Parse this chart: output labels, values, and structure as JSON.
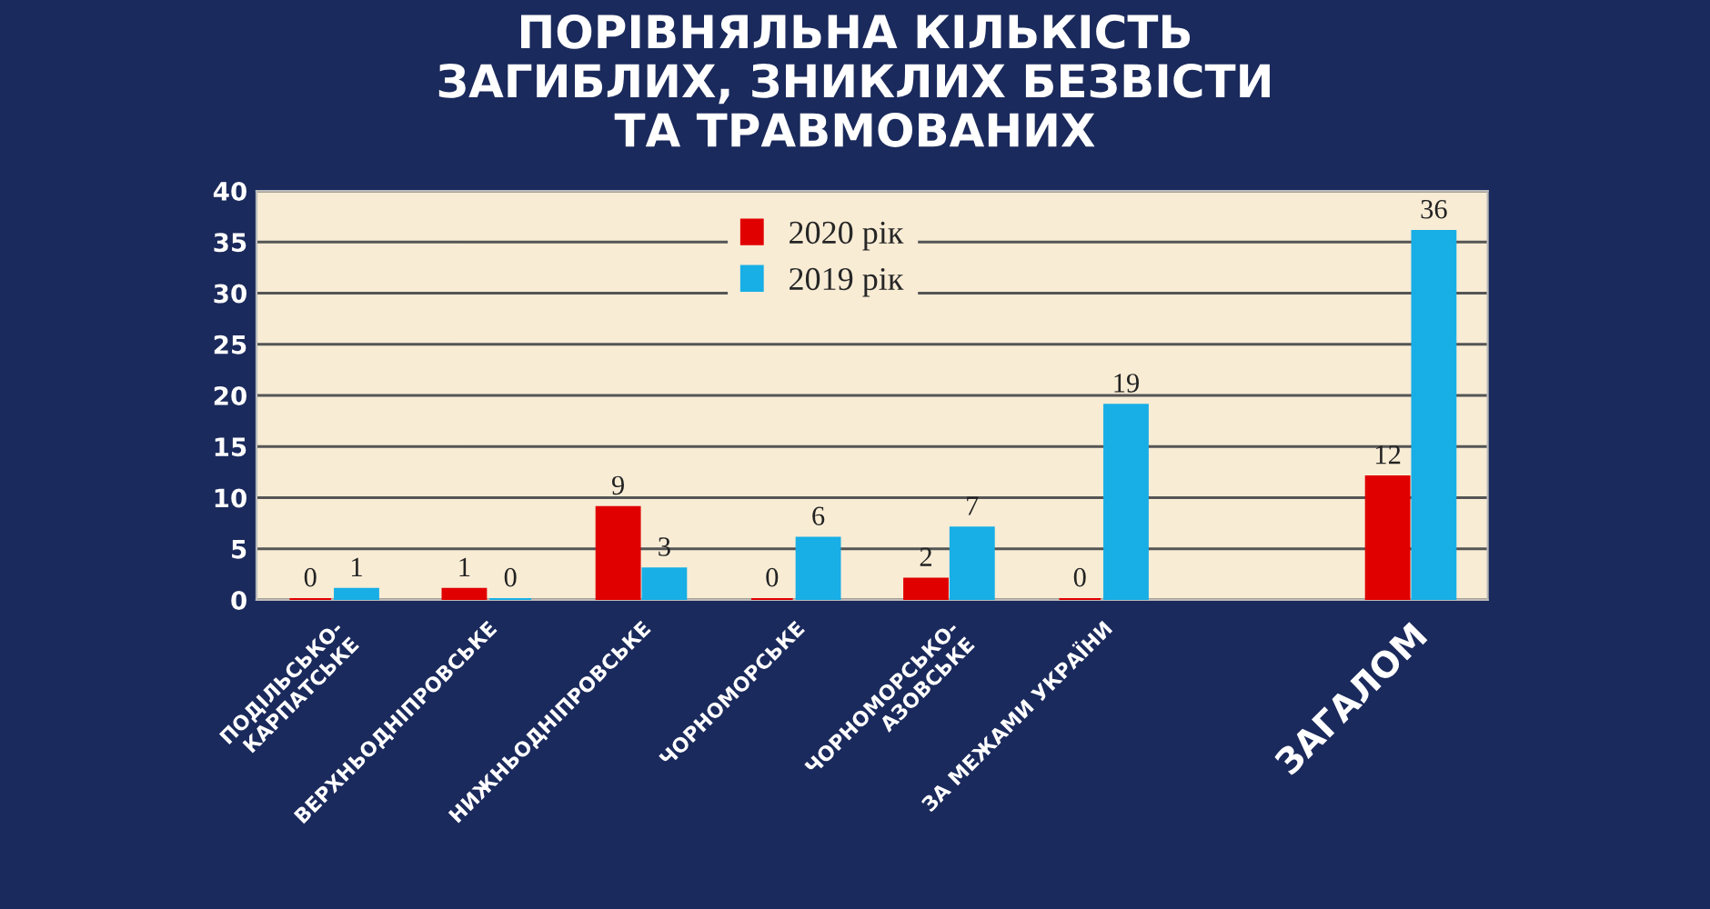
{
  "chart_data": {
    "type": "bar",
    "title": "ПОРІВНЯЛЬНА КІЛЬКІСТЬ\nЗАГИБЛИХ, ЗНИКЛИХ БЕЗВІСТИ\nТА ТРАВМОВАНИХ",
    "categories": [
      "ПОДІЛЬСЬКО-\nКАРПАТСЬКЕ",
      "ВЕРХНЬОДНІПРОВСЬКЕ",
      "НИЖНЬОДНІПРОВСЬКЕ",
      "ЧОРНОМОРСЬКЕ",
      "ЧОРНОМОРСЬКО-\nАЗОВСЬКЕ",
      "ЗА МЕЖАМИ УКРАЇНИ",
      null,
      "ЗАГАЛОМ"
    ],
    "series": [
      {
        "name": "2020 рік",
        "color": "#e00000",
        "values": [
          0,
          1,
          9,
          0,
          2,
          0,
          null,
          12
        ]
      },
      {
        "name": "2019 рік",
        "color": "#18aee6",
        "values": [
          1,
          0,
          3,
          6,
          7,
          19,
          null,
          36
        ]
      }
    ],
    "ylim": [
      0,
      40
    ],
    "yticks": [
      0,
      5,
      10,
      15,
      20,
      25,
      30,
      35,
      40
    ],
    "grid": "y",
    "legend": "top",
    "data_labels": true
  }
}
